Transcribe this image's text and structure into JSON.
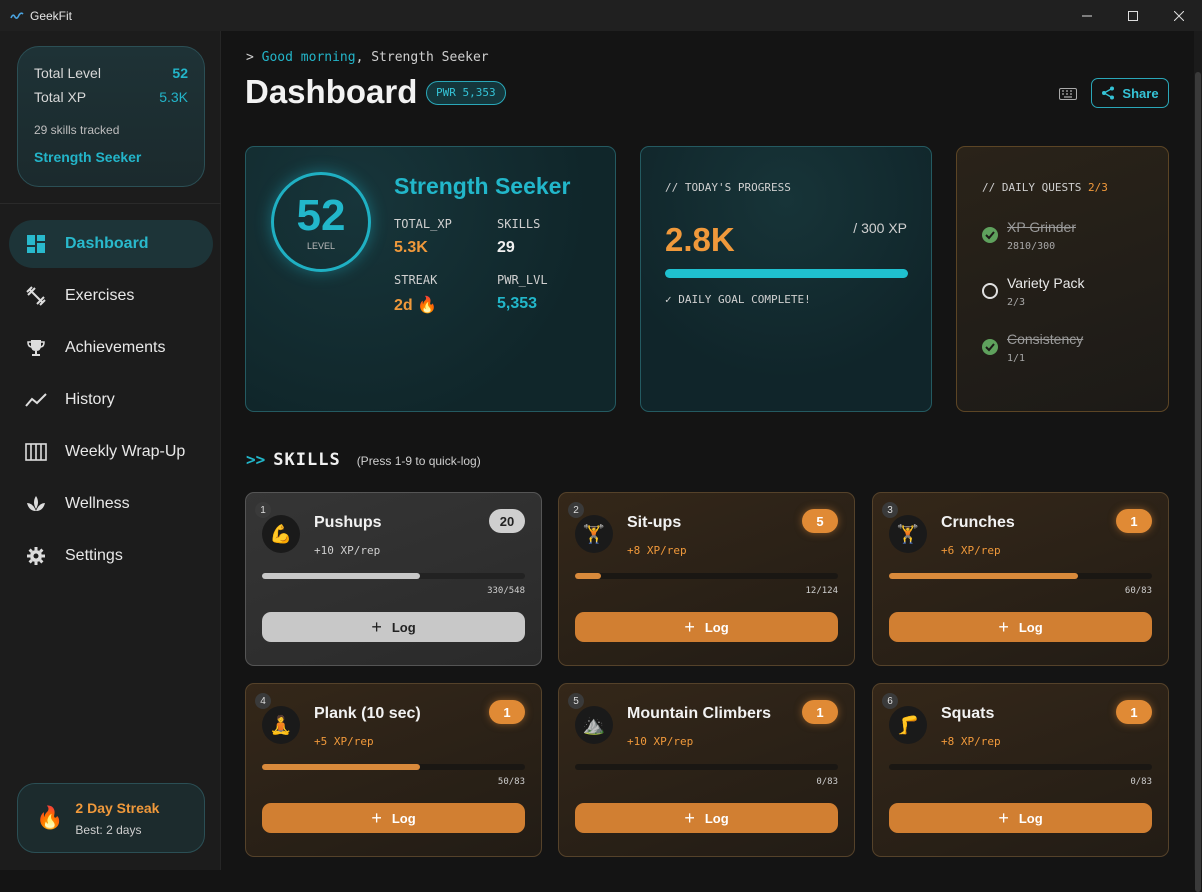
{
  "window": {
    "title": "GeekFit",
    "minimize": "—",
    "maximize": "☐",
    "close": "✕"
  },
  "sidebar": {
    "summary": {
      "total_level_label": "Total Level",
      "total_level": "52",
      "total_xp_label": "Total XP",
      "total_xp": "5.3K",
      "skills_tracked": "29 skills tracked",
      "title": "Strength Seeker"
    },
    "items": [
      {
        "label": "Dashboard",
        "icon": "dashboard-icon",
        "active": true
      },
      {
        "label": "Exercises",
        "icon": "dumbbell-icon"
      },
      {
        "label": "Achievements",
        "icon": "trophy-icon"
      },
      {
        "label": "History",
        "icon": "trend-icon"
      },
      {
        "label": "Weekly Wrap-Up",
        "icon": "calendar-icon"
      },
      {
        "label": "Wellness",
        "icon": "lotus-icon"
      },
      {
        "label": "Settings",
        "icon": "gear-icon"
      }
    ],
    "streak": {
      "title": "2 Day Streak",
      "best": "Best: 2 days",
      "icon": "🔥"
    }
  },
  "header": {
    "greeting_prefix": "> ",
    "greeting_accent": "Good morning",
    "greeting_rest": ", Strength Seeker",
    "title": "Dashboard",
    "pwr_badge": "PWR 5,353",
    "share_label": "Share"
  },
  "level_card": {
    "level": "52",
    "level_label": "LEVEL",
    "name": "Strength Seeker",
    "total_xp_label": "TOTAL_XP",
    "total_xp": "5.3K",
    "skills_label": "SKILLS",
    "skills": "29",
    "streak_label": "STREAK",
    "streak": "2d 🔥",
    "pwr_label": "PWR_LVL",
    "pwr": "5,353"
  },
  "progress_card": {
    "label": "// TODAY'S PROGRESS",
    "value": "2.8K",
    "goal": "/ 300 XP",
    "progress": 1.0,
    "status": "✓ DAILY GOAL COMPLETE!"
  },
  "quests_card": {
    "label": "// DAILY QUESTS",
    "count": "2/3",
    "quests": [
      {
        "name": "XP Grinder",
        "progress": "2810/300",
        "done": true
      },
      {
        "name": "Variety Pack",
        "progress": "2/3",
        "done": false
      },
      {
        "name": "Consistency",
        "progress": "1/1",
        "done": true
      }
    ]
  },
  "skills_section": {
    "arrow": ">>",
    "title": "SKILLS",
    "hint": "(Press 1-9 to quick-log)"
  },
  "skills": [
    {
      "num": "1",
      "emoji": "💪",
      "name": "Pushups",
      "xp": "+10 XP/rep",
      "level": "20",
      "count": "330/548",
      "fill": 0.6,
      "log": "Log",
      "highlight": true
    },
    {
      "num": "2",
      "emoji": "🏋️",
      "name": "Sit-ups",
      "xp": "+8 XP/rep",
      "level": "5",
      "count": "12/124",
      "fill": 0.097,
      "log": "Log"
    },
    {
      "num": "3",
      "emoji": "🏋️",
      "name": "Crunches",
      "xp": "+6 XP/rep",
      "level": "1",
      "count": "60/83",
      "fill": 0.72,
      "log": "Log"
    },
    {
      "num": "4",
      "emoji": "🧘",
      "name": "Plank (10 sec)",
      "xp": "+5 XP/rep",
      "level": "1",
      "count": "50/83",
      "fill": 0.6,
      "log": "Log"
    },
    {
      "num": "5",
      "emoji": "⛰️",
      "name": "Mountain Climbers",
      "xp": "+10 XP/rep",
      "level": "1",
      "count": "0/83",
      "fill": 0,
      "log": "Log"
    },
    {
      "num": "6",
      "emoji": "🦵",
      "name": "Squats",
      "xp": "+8 XP/rep",
      "level": "1",
      "count": "0/83",
      "fill": 0,
      "log": "Log"
    }
  ],
  "colors": {
    "accent": "#22b7ca",
    "orange": "#f0993b",
    "log_button": "#d17f32"
  }
}
